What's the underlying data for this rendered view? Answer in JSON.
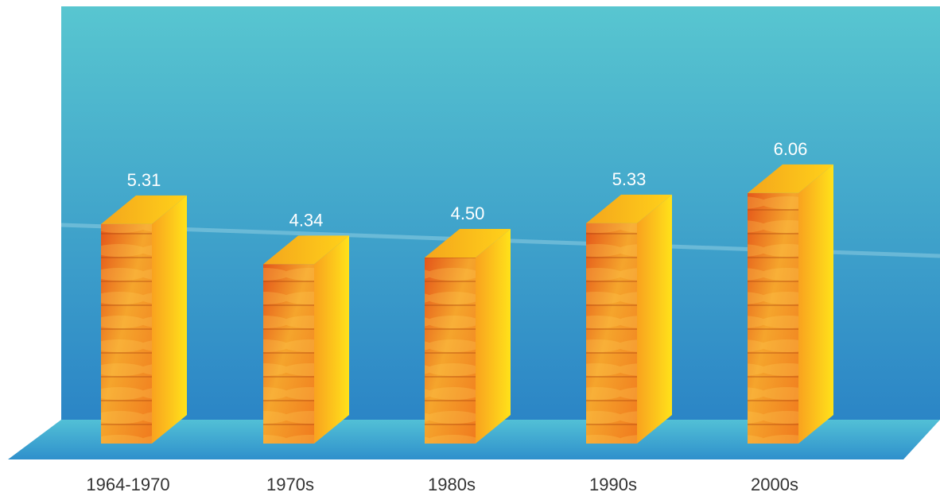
{
  "chart_data": {
    "type": "bar",
    "categories": [
      "1964-1970",
      "1970s",
      "1980s",
      "1990s",
      "2000s"
    ],
    "values": [
      5.31,
      4.34,
      4.5,
      5.33,
      6.06
    ],
    "value_labels": [
      "5.31",
      "4.34",
      "4.50",
      "5.33",
      "6.06"
    ],
    "title": "",
    "xlabel": "",
    "ylabel": "",
    "legend": "none",
    "grid": false,
    "style": "3d-bar",
    "ylim": [
      0,
      7
    ]
  },
  "colors": {
    "background_top": "#58c6d0",
    "background_bottom": "#2b85c6",
    "floor": "#3aa9d4",
    "bar_front_light": "#f9b133",
    "bar_front_dark": "#d84a12",
    "bar_side": "#ffd21a",
    "bar_top": "#f5b81e"
  }
}
